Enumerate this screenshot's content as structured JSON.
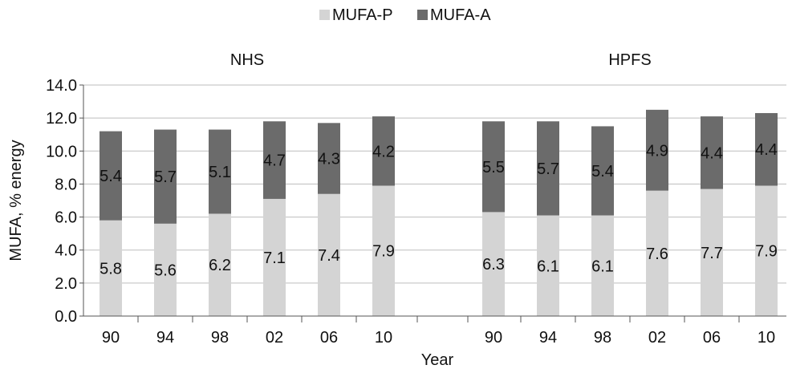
{
  "chart_data": {
    "type": "bar",
    "stacked": true,
    "ylabel": "MUFA, % energy",
    "xlabel": "Year",
    "ylim": [
      0,
      14
    ],
    "ytick_step": 2,
    "ytick_labels": [
      "0.0",
      "2.0",
      "4.0",
      "6.0",
      "8.0",
      "10.0",
      "12.0",
      "14.0"
    ],
    "grid": true,
    "legend_position": "top-center",
    "legend": [
      {
        "name": "MUFA-P",
        "color": "#d4d4d4"
      },
      {
        "name": "MUFA-A",
        "color": "#6b6b6b"
      }
    ],
    "groups": [
      {
        "name": "NHS",
        "categories": [
          "90",
          "94",
          "98",
          "02",
          "06",
          "10"
        ],
        "series": [
          {
            "name": "MUFA-P",
            "values": [
              5.8,
              5.6,
              6.2,
              7.1,
              7.4,
              7.9
            ],
            "labels": [
              "5.8",
              "5.6",
              "6.2",
              "7.1",
              "7.4",
              "7.9"
            ]
          },
          {
            "name": "MUFA-A",
            "values": [
              5.4,
              5.7,
              5.1,
              4.7,
              4.3,
              4.2
            ],
            "labels": [
              "5.4",
              "5.7",
              "5.1",
              "4.7",
              "4.3",
              "4.2"
            ]
          }
        ]
      },
      {
        "name": "HPFS",
        "categories": [
          "90",
          "94",
          "98",
          "02",
          "06",
          "10"
        ],
        "series": [
          {
            "name": "MUFA-P",
            "values": [
              6.3,
              6.1,
              6.1,
              7.6,
              7.7,
              7.9
            ],
            "labels": [
              "6.3",
              "6.1",
              "6.1",
              "7.6",
              "7.7",
              "7.9"
            ]
          },
          {
            "name": "MUFA-A",
            "values": [
              5.5,
              5.7,
              5.4,
              4.9,
              4.4,
              4.4
            ],
            "labels": [
              "5.5",
              "5.7",
              "5.4",
              "4.9",
              "4.4",
              "4.4"
            ]
          }
        ]
      }
    ]
  }
}
